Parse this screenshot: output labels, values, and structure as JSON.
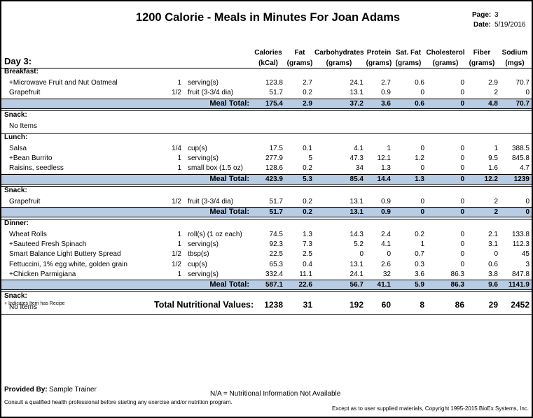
{
  "report_title": "1200 Calorie - Meals in Minutes For Joan Adams",
  "page_label": "Page:",
  "page_value": "3",
  "date_label": "Date:",
  "date_value": "5/19/2016",
  "day_title": "Day 3:",
  "columns": [
    {
      "name": "Calories",
      "unit": "(kCal)"
    },
    {
      "name": "Fat",
      "unit": "(grams)"
    },
    {
      "name": "Carbohydrates",
      "unit": "(grams)"
    },
    {
      "name": "Protein",
      "unit": "(grams)"
    },
    {
      "name": "Sat. Fat",
      "unit": "(grams)"
    },
    {
      "name": "Cholesterol",
      "unit": "(grams)"
    },
    {
      "name": "Fiber",
      "unit": "(grams)"
    },
    {
      "name": "Sodium",
      "unit": "(mgs)"
    }
  ],
  "meal_total_label": "Meal Total:",
  "no_items_label": "No Items",
  "meals": [
    {
      "title": "Breakfast:",
      "items": [
        {
          "name": "+Microwave Fruit and Nut Oatmeal",
          "qty": "1",
          "unit": "serving(s)",
          "v": [
            "123.8",
            "2.7",
            "24.1",
            "2.7",
            "0.6",
            "0",
            "2.9",
            "70.7"
          ]
        },
        {
          "name": "Grapefruit",
          "qty": "1/2",
          "unit": "fruit (3-3/4 dia)",
          "v": [
            "51.7",
            "0.2",
            "13.1",
            "0.9",
            "0",
            "0",
            "2",
            "0"
          ]
        }
      ],
      "total": [
        "175.4",
        "2.9",
        "37.2",
        "3.6",
        "0.6",
        "0",
        "4.8",
        "70.7"
      ]
    },
    {
      "title": "Snack:",
      "items": [],
      "total": null
    },
    {
      "title": "Lunch:",
      "items": [
        {
          "name": "Salsa",
          "qty": "1/4",
          "unit": "cup(s)",
          "v": [
            "17.5",
            "0.1",
            "4.1",
            "1",
            "0",
            "0",
            "1",
            "388.5"
          ]
        },
        {
          "name": "+Bean Burrito",
          "qty": "1",
          "unit": "serving(s)",
          "v": [
            "277.9",
            "5",
            "47.3",
            "12.1",
            "1.2",
            "0",
            "9.5",
            "845.8"
          ]
        },
        {
          "name": "Raisins, seedless",
          "qty": "1",
          "unit": "small box (1.5 oz)",
          "v": [
            "128.6",
            "0.2",
            "34",
            "1.3",
            "0",
            "0",
            "1.6",
            "4.7"
          ]
        }
      ],
      "total": [
        "423.9",
        "5.3",
        "85.4",
        "14.4",
        "1.3",
        "0",
        "12.2",
        "1239"
      ]
    },
    {
      "title": "Snack:",
      "items": [
        {
          "name": "Grapefruit",
          "qty": "1/2",
          "unit": "fruit (3-3/4 dia)",
          "v": [
            "51.7",
            "0.2",
            "13.1",
            "0.9",
            "0",
            "0",
            "2",
            "0"
          ]
        }
      ],
      "total": [
        "51.7",
        "0.2",
        "13.1",
        "0.9",
        "0",
        "0",
        "2",
        "0"
      ]
    },
    {
      "title": "Dinner:",
      "items": [
        {
          "name": "Wheat Rolls",
          "qty": "1",
          "unit": "roll(s) (1 oz each)",
          "v": [
            "74.5",
            "1.3",
            "14.3",
            "2.4",
            "0.2",
            "0",
            "2.1",
            "133.8"
          ]
        },
        {
          "name": "+Sauteed Fresh Spinach",
          "qty": "1",
          "unit": "serving(s)",
          "v": [
            "92.3",
            "7.3",
            "5.2",
            "4.1",
            "1",
            "0",
            "3.1",
            "112.3"
          ]
        },
        {
          "name": "Smart Balance Light Buttery Spread",
          "qty": "1/2",
          "unit": "tbsp(s)",
          "v": [
            "22.5",
            "2.5",
            "0",
            "0",
            "0.7",
            "0",
            "0",
            "45"
          ]
        },
        {
          "name": "Fettuccini, 1% egg white, golden grain",
          "qty": "1/2",
          "unit": "cup(s)",
          "v": [
            "65.3",
            "0.4",
            "13.1",
            "2.6",
            "0.3",
            "0",
            "0.6",
            "3"
          ]
        },
        {
          "name": "+Chicken Parmigiana",
          "qty": "1",
          "unit": "serving(s)",
          "v": [
            "332.4",
            "11.1",
            "24.1",
            "32",
            "3.6",
            "86.3",
            "3.8",
            "847.8"
          ]
        }
      ],
      "total": [
        "587.1",
        "22.6",
        "56.7",
        "41.1",
        "5.9",
        "86.3",
        "9.6",
        "1141.9"
      ]
    },
    {
      "title": "Snack:",
      "items": [],
      "total": null
    }
  ],
  "recipe_note": "+ Indicates Item has Recipe",
  "grand_total_label": "Total Nutritional Values:",
  "grand_total": [
    "1238",
    "31",
    "192",
    "60",
    "8",
    "86",
    "29",
    "2452"
  ],
  "provided_by_label": "Provided By:",
  "provided_by_value": "Sample Trainer",
  "na_note": "N/A = Nutritional Information Not Available",
  "consult_note": "Consult a qualified health professional before starting any exercise and/or nutrition program.",
  "copyright_note": "Except as to user supplied materials, Copyright 1995-2015 BioEx Systems, Inc."
}
